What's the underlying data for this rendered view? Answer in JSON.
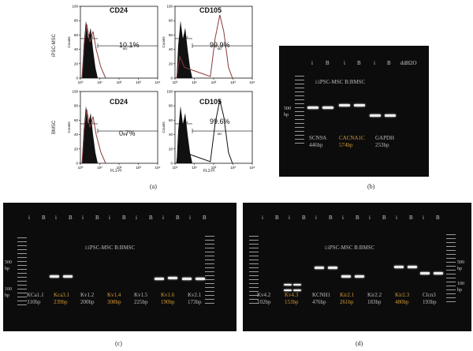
{
  "panel_a": {
    "caption": "(a)",
    "row_labels": [
      "iPSC-MSC",
      "BMSC"
    ],
    "y_axis_label": "Counts",
    "x_axis_labels": [
      "FL1-H",
      "FL2-H"
    ],
    "y_ticks": [
      "0",
      "20",
      "40",
      "60",
      "80",
      "100"
    ],
    "x_ticks": [
      "10⁰",
      "10¹",
      "10²",
      "10³",
      "10⁴"
    ],
    "gates": [
      "M1",
      "M2"
    ],
    "plots": [
      {
        "marker": "CD24",
        "percent": "10.1%"
      },
      {
        "marker": "CD105",
        "percent": "99.9%"
      },
      {
        "marker": "CD24",
        "percent": "0.7%"
      },
      {
        "marker": "CD105",
        "percent": "99.6%"
      }
    ]
  },
  "panel_b": {
    "caption": "(b)",
    "lane_labels": [
      "i",
      "B",
      "i",
      "B",
      "i",
      "B",
      "ddH2O"
    ],
    "legend": "i:iPSC-MSC   B:BMSC",
    "ladder_label": "500\nbp",
    "genes": [
      {
        "name": "SCN9A",
        "size": "446bp",
        "color": "#bdbdbd"
      },
      {
        "name": "CACNA1C",
        "size": "574bp",
        "color": "#d79b34"
      },
      {
        "name": "GAPDH",
        "size": "253bp",
        "color": "#bdbdbd"
      }
    ]
  },
  "panel_c": {
    "caption": "(c)",
    "lane_labels": [
      "i",
      "B",
      "i",
      "B",
      "i",
      "B",
      "i",
      "B",
      "i",
      "B",
      "i",
      "B",
      "i",
      "B"
    ],
    "legend": "i:iPSC-MSC        B:BMSC",
    "ladder_labels": [
      "500\nbp",
      "100\nbp"
    ],
    "genes": [
      {
        "name": "KCa1.1",
        "size": "310bp",
        "color": "#bdbdbd"
      },
      {
        "name": "Kca3.1",
        "size": "239bp",
        "color": "#d79b34"
      },
      {
        "name": "Kv1.2",
        "size": "200bp",
        "color": "#bdbdbd"
      },
      {
        "name": "Kv1.4",
        "size": "308bp",
        "color": "#d79b34"
      },
      {
        "name": "Kv1.5",
        "size": "225bp",
        "color": "#bdbdbd"
      },
      {
        "name": "Kv1.6",
        "size": "190bp",
        "color": "#d79b34"
      },
      {
        "name": "Kv2.1",
        "size": "173bp",
        "color": "#bdbdbd"
      }
    ]
  },
  "panel_d": {
    "caption": "(d)",
    "lane_labels": [
      "i",
      "B",
      "i",
      "B",
      "i",
      "B",
      "i",
      "B",
      "i",
      "B",
      "i",
      "B",
      "i",
      "B"
    ],
    "legend": "i:iPSC-MSC        B:BMSC",
    "ladder_labels": [
      "500\nbp",
      "100\nbp"
    ],
    "genes": [
      {
        "name": "Kv4.2",
        "size": "102bp",
        "color": "#bdbdbd"
      },
      {
        "name": "Kv4.3",
        "size": "153bp",
        "color": "#d79b34"
      },
      {
        "name": "KCNH1",
        "size": "476bp",
        "color": "#bdbdbd"
      },
      {
        "name": "Kir2.1",
        "size": "261bp",
        "color": "#d79b34"
      },
      {
        "name": "Kir2.2",
        "size": "183bp",
        "color": "#bdbdbd"
      },
      {
        "name": "Kir2.3",
        "size": "480bp",
        "color": "#d79b34"
      },
      {
        "name": "Clcn3",
        "size": "193bp",
        "color": "#bdbdbd"
      }
    ]
  }
}
